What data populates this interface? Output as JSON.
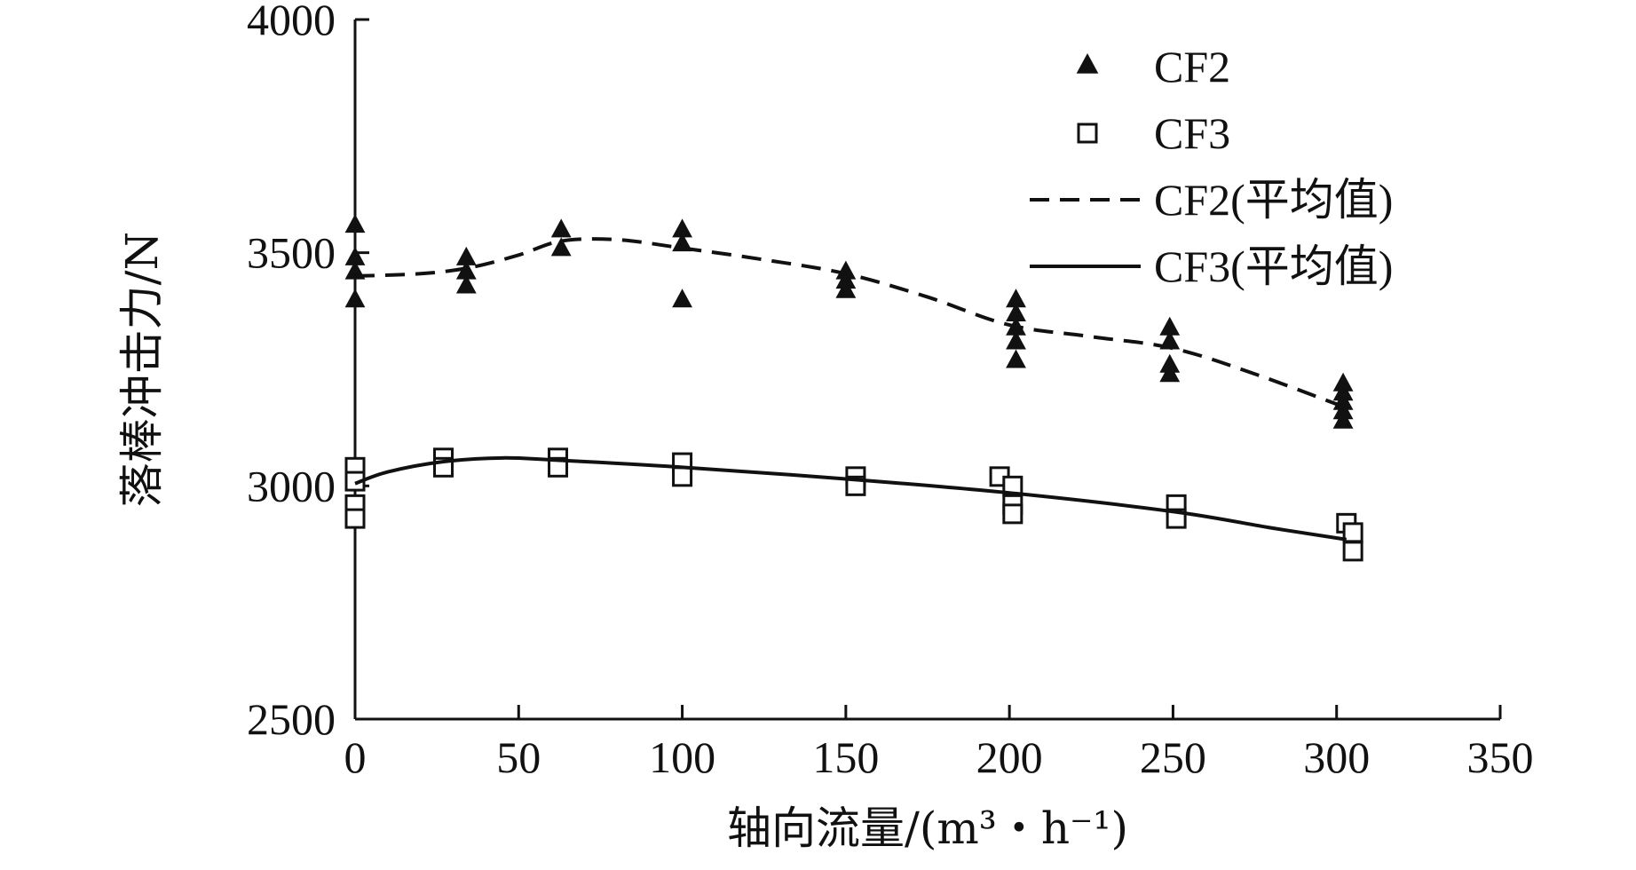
{
  "chart_data": {
    "type": "scatter",
    "xlabel": "轴向流量/(m³・h⁻¹)",
    "ylabel": "落棒冲击力/N",
    "xlim": [
      0,
      350
    ],
    "ylim": [
      2500,
      4000
    ],
    "x_ticks": [
      0,
      50,
      100,
      150,
      200,
      250,
      300,
      350
    ],
    "y_ticks": [
      2500,
      3000,
      3500,
      4000
    ],
    "grid": false,
    "legend_position": "top-right",
    "series": [
      {
        "name": "CF2",
        "kind": "scatter",
        "marker": "filled-triangle",
        "points": [
          [
            0,
            3560
          ],
          [
            0,
            3490
          ],
          [
            0,
            3460
          ],
          [
            0,
            3400
          ],
          [
            34,
            3490
          ],
          [
            34,
            3460
          ],
          [
            34,
            3430
          ],
          [
            63,
            3550
          ],
          [
            63,
            3510
          ],
          [
            100,
            3550
          ],
          [
            100,
            3520
          ],
          [
            100,
            3400
          ],
          [
            150,
            3460
          ],
          [
            150,
            3440
          ],
          [
            150,
            3420
          ],
          [
            202,
            3400
          ],
          [
            202,
            3370
          ],
          [
            202,
            3340
          ],
          [
            202,
            3310
          ],
          [
            202,
            3270
          ],
          [
            249,
            3340
          ],
          [
            249,
            3310
          ],
          [
            249,
            3260
          ],
          [
            249,
            3240
          ],
          [
            302,
            3220
          ],
          [
            302,
            3200
          ],
          [
            302,
            3180
          ],
          [
            302,
            3160
          ],
          [
            302,
            3140
          ]
        ]
      },
      {
        "name": "CF3",
        "kind": "scatter",
        "marker": "open-square",
        "points": [
          [
            0,
            3040
          ],
          [
            0,
            3010
          ],
          [
            0,
            2960
          ],
          [
            0,
            2930
          ],
          [
            27,
            3060
          ],
          [
            27,
            3040
          ],
          [
            62,
            3060
          ],
          [
            62,
            3040
          ],
          [
            100,
            3050
          ],
          [
            100,
            3020
          ],
          [
            153,
            3020
          ],
          [
            153,
            3000
          ],
          [
            197,
            3020
          ],
          [
            201,
            3000
          ],
          [
            201,
            2960
          ],
          [
            201,
            2940
          ],
          [
            251,
            2960
          ],
          [
            251,
            2930
          ],
          [
            303,
            2920
          ],
          [
            305,
            2900
          ],
          [
            305,
            2860
          ]
        ]
      },
      {
        "name": "CF2(平均值)",
        "kind": "line",
        "style": "dashed",
        "points": [
          [
            0,
            3450
          ],
          [
            20,
            3455
          ],
          [
            35,
            3468
          ],
          [
            50,
            3495
          ],
          [
            63,
            3525
          ],
          [
            80,
            3528
          ],
          [
            100,
            3510
          ],
          [
            125,
            3485
          ],
          [
            150,
            3455
          ],
          [
            175,
            3405
          ],
          [
            200,
            3345
          ],
          [
            225,
            3320
          ],
          [
            250,
            3295
          ],
          [
            275,
            3240
          ],
          [
            302,
            3170
          ]
        ]
      },
      {
        "name": "CF3(平均值)",
        "kind": "line",
        "style": "solid",
        "points": [
          [
            0,
            3005
          ],
          [
            10,
            3030
          ],
          [
            27,
            3052
          ],
          [
            45,
            3060
          ],
          [
            62,
            3055
          ],
          [
            100,
            3040
          ],
          [
            150,
            3015
          ],
          [
            200,
            2985
          ],
          [
            250,
            2945
          ],
          [
            280,
            2910
          ],
          [
            303,
            2885
          ]
        ]
      }
    ],
    "colors": {
      "marks": "#111111",
      "background": "#ffffff"
    }
  }
}
